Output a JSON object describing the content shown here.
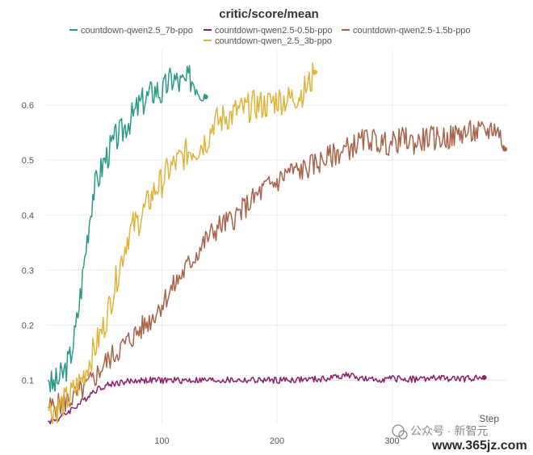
{
  "chart_data": {
    "type": "line",
    "title": "critic/score/mean",
    "xlabel": "Step",
    "ylabel": "",
    "xlim": [
      0,
      400
    ],
    "ylim": [
      0.02,
      0.7
    ],
    "x_ticks": [
      100,
      200,
      300
    ],
    "y_ticks": [
      0.1,
      0.2,
      0.3,
      0.4,
      0.5,
      0.6
    ],
    "grid": true,
    "legend_position": "top",
    "series": [
      {
        "name": "countdown-qwen2.5_7b-ppo",
        "color": "#2a9a86",
        "points": [
          [
            1,
            0.1
          ],
          [
            5,
            0.09
          ],
          [
            10,
            0.1
          ],
          [
            15,
            0.115
          ],
          [
            20,
            0.14
          ],
          [
            25,
            0.19
          ],
          [
            30,
            0.27
          ],
          [
            35,
            0.36
          ],
          [
            40,
            0.44
          ],
          [
            45,
            0.47
          ],
          [
            50,
            0.5
          ],
          [
            55,
            0.52
          ],
          [
            60,
            0.54
          ],
          [
            65,
            0.55
          ],
          [
            70,
            0.57
          ],
          [
            75,
            0.58
          ],
          [
            80,
            0.6
          ],
          [
            85,
            0.61
          ],
          [
            90,
            0.62
          ],
          [
            95,
            0.63
          ],
          [
            100,
            0.62
          ],
          [
            105,
            0.64
          ],
          [
            110,
            0.65
          ],
          [
            115,
            0.64
          ],
          [
            120,
            0.64
          ],
          [
            125,
            0.65
          ],
          [
            130,
            0.64
          ],
          [
            135,
            0.63
          ],
          [
            138,
            0.615
          ]
        ]
      },
      {
        "name": "countdown-qwen2.5-0.5b-ppo",
        "color": "#8b1f6a",
        "points": [
          [
            1,
            0.025
          ],
          [
            10,
            0.03
          ],
          [
            20,
            0.045
          ],
          [
            30,
            0.06
          ],
          [
            40,
            0.08
          ],
          [
            50,
            0.09
          ],
          [
            60,
            0.095
          ],
          [
            80,
            0.1
          ],
          [
            100,
            0.1
          ],
          [
            130,
            0.1
          ],
          [
            160,
            0.1
          ],
          [
            200,
            0.1
          ],
          [
            240,
            0.102
          ],
          [
            260,
            0.11
          ],
          [
            280,
            0.1
          ],
          [
            300,
            0.103
          ],
          [
            320,
            0.102
          ],
          [
            340,
            0.104
          ],
          [
            360,
            0.102
          ],
          [
            375,
            0.105
          ],
          [
            380,
            0.105
          ]
        ]
      },
      {
        "name": "countdown-qwen2.5-1.5b-ppo",
        "color": "#a8634a",
        "points": [
          [
            1,
            0.05
          ],
          [
            10,
            0.055
          ],
          [
            20,
            0.065
          ],
          [
            30,
            0.08
          ],
          [
            40,
            0.1
          ],
          [
            50,
            0.13
          ],
          [
            60,
            0.15
          ],
          [
            70,
            0.17
          ],
          [
            80,
            0.19
          ],
          [
            90,
            0.21
          ],
          [
            100,
            0.24
          ],
          [
            110,
            0.27
          ],
          [
            120,
            0.3
          ],
          [
            130,
            0.33
          ],
          [
            140,
            0.36
          ],
          [
            150,
            0.38
          ],
          [
            160,
            0.39
          ],
          [
            170,
            0.41
          ],
          [
            180,
            0.43
          ],
          [
            190,
            0.45
          ],
          [
            200,
            0.46
          ],
          [
            210,
            0.48
          ],
          [
            220,
            0.48
          ],
          [
            230,
            0.49
          ],
          [
            240,
            0.5
          ],
          [
            250,
            0.51
          ],
          [
            260,
            0.52
          ],
          [
            270,
            0.53
          ],
          [
            280,
            0.54
          ],
          [
            290,
            0.53
          ],
          [
            300,
            0.53
          ],
          [
            310,
            0.54
          ],
          [
            320,
            0.53
          ],
          [
            330,
            0.54
          ],
          [
            340,
            0.54
          ],
          [
            350,
            0.54
          ],
          [
            360,
            0.55
          ],
          [
            370,
            0.55
          ],
          [
            380,
            0.55
          ],
          [
            390,
            0.56
          ],
          [
            395,
            0.54
          ],
          [
            398,
            0.52
          ]
        ]
      },
      {
        "name": "countdown-qwen_2.5_3b-ppo",
        "color": "#e0b43a",
        "points": [
          [
            1,
            0.045
          ],
          [
            10,
            0.05
          ],
          [
            20,
            0.07
          ],
          [
            30,
            0.1
          ],
          [
            40,
            0.15
          ],
          [
            50,
            0.2
          ],
          [
            55,
            0.24
          ],
          [
            60,
            0.28
          ],
          [
            65,
            0.32
          ],
          [
            70,
            0.36
          ],
          [
            75,
            0.38
          ],
          [
            80,
            0.39
          ],
          [
            85,
            0.41
          ],
          [
            90,
            0.43
          ],
          [
            95,
            0.45
          ],
          [
            100,
            0.46
          ],
          [
            105,
            0.48
          ],
          [
            110,
            0.49
          ],
          [
            115,
            0.5
          ],
          [
            120,
            0.51
          ],
          [
            125,
            0.52
          ],
          [
            130,
            0.52
          ],
          [
            135,
            0.53
          ],
          [
            140,
            0.54
          ],
          [
            145,
            0.57
          ],
          [
            150,
            0.57
          ],
          [
            155,
            0.58
          ],
          [
            160,
            0.58
          ],
          [
            165,
            0.59
          ],
          [
            170,
            0.59
          ],
          [
            180,
            0.6
          ],
          [
            190,
            0.6
          ],
          [
            200,
            0.61
          ],
          [
            210,
            0.61
          ],
          [
            220,
            0.62
          ],
          [
            225,
            0.63
          ],
          [
            230,
            0.645
          ],
          [
            233,
            0.66
          ]
        ]
      }
    ]
  },
  "watermark": {
    "text": "公众号 · 新智元",
    "url": "www.365jz.com"
  }
}
